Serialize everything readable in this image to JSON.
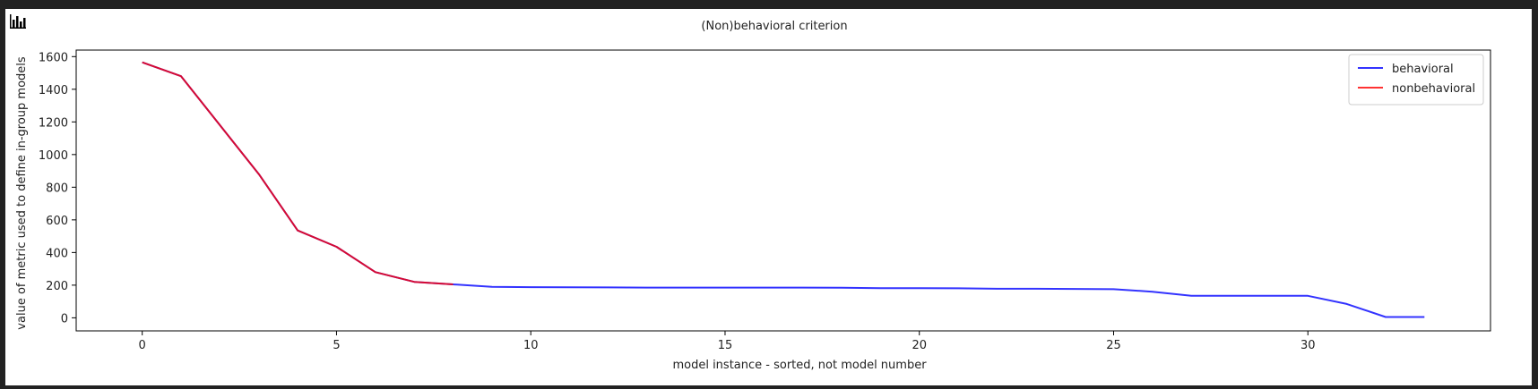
{
  "chart_data": {
    "type": "line",
    "title": "(Non)behavioral criterion",
    "xlabel": "model instance - sorted, not model number",
    "ylabel": "value of metric used to define in-group models",
    "xlim": [
      -1.7,
      34.7
    ],
    "ylim": [
      -80,
      1640
    ],
    "xticks": [
      0,
      5,
      10,
      15,
      20,
      25,
      30
    ],
    "yticks": [
      0,
      200,
      400,
      600,
      800,
      1000,
      1200,
      1400,
      1600
    ],
    "grid": false,
    "legend_position": "top-right",
    "series": [
      {
        "name": "behavioral",
        "color": "#0000ff",
        "x": [
          0,
          1,
          2,
          3,
          4,
          5,
          6,
          7,
          8,
          9,
          10,
          11,
          12,
          13,
          14,
          15,
          16,
          17,
          18,
          19,
          20,
          21,
          22,
          23,
          24,
          25,
          26,
          27,
          28,
          29,
          30,
          31,
          32,
          33
        ],
        "y": [
          1565,
          1480,
          1180,
          880,
          535,
          435,
          280,
          220,
          205,
          190,
          188,
          187,
          186,
          185,
          185,
          185,
          185,
          185,
          184,
          182,
          182,
          181,
          178,
          178,
          177,
          175,
          160,
          135,
          135,
          135,
          135,
          85,
          5,
          5
        ]
      },
      {
        "name": "nonbehavioral",
        "color": "#ff0000",
        "x": [
          0,
          1,
          2,
          3,
          4,
          5,
          6,
          7,
          8
        ],
        "y": [
          1565,
          1480,
          1180,
          880,
          535,
          435,
          280,
          220,
          205
        ]
      }
    ]
  }
}
